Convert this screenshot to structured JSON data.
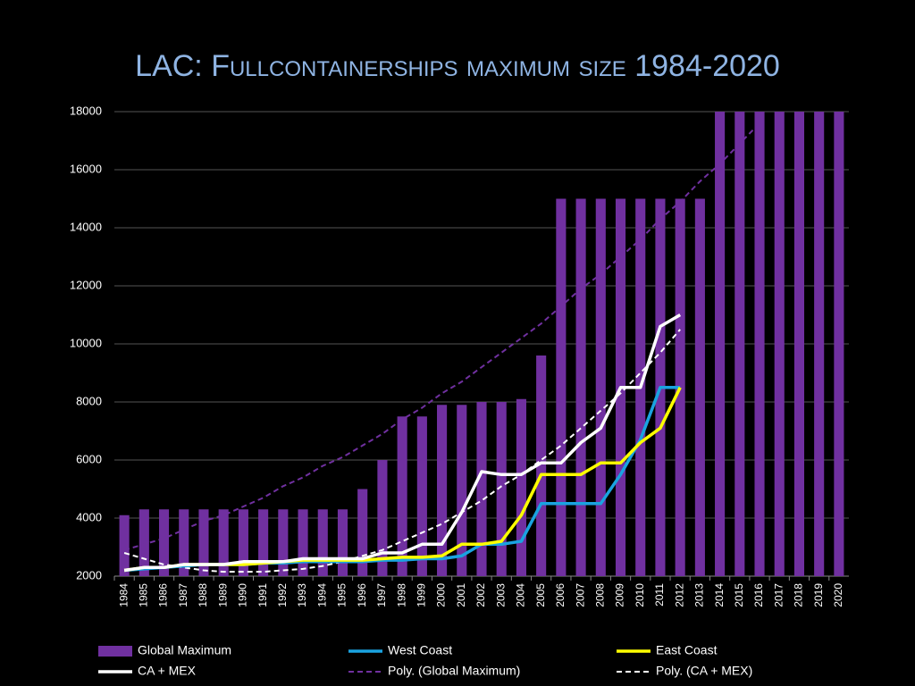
{
  "chart_data": {
    "type": "bar-line",
    "title": "LAC: Fullcontainerships maximum size 1984-2020",
    "categories": [
      "1984",
      "1985",
      "1986",
      "1987",
      "1988",
      "1989",
      "1990",
      "1991",
      "1992",
      "1993",
      "1994",
      "1995",
      "1996",
      "1997",
      "1998",
      "1999",
      "2000",
      "2001",
      "2002",
      "2003",
      "2004",
      "2005",
      "2006",
      "2007",
      "2008",
      "2009",
      "2010",
      "2011",
      "2012",
      "2013",
      "2014",
      "2015",
      "2016",
      "2017",
      "2018",
      "2019",
      "2020"
    ],
    "ylim": [
      2000,
      18000
    ],
    "yticks": [
      2000,
      4000,
      6000,
      8000,
      10000,
      12000,
      14000,
      16000,
      18000
    ],
    "grid": true,
    "legend": "bottom",
    "series": [
      {
        "name": "Global Maximum",
        "kind": "bar",
        "color": "#7030a0",
        "values": [
          4100,
          4300,
          4300,
          4300,
          4300,
          4300,
          4300,
          4300,
          4300,
          4300,
          4300,
          4300,
          5000,
          6000,
          7500,
          7500,
          7900,
          7900,
          8000,
          8000,
          8100,
          9600,
          15000,
          15000,
          15000,
          15000,
          15000,
          15000,
          15000,
          15000,
          18000,
          18000,
          18000,
          18000,
          18000,
          18000,
          18000
        ]
      },
      {
        "name": "West Coast",
        "kind": "line",
        "color": "#1aa3e0",
        "values": [
          2200,
          2250,
          2300,
          2350,
          2400,
          2400,
          2400,
          2450,
          2450,
          2500,
          2500,
          2500,
          2500,
          2550,
          2550,
          2600,
          2600,
          2700,
          3100,
          3100,
          3200,
          4500,
          4500,
          4500,
          4500,
          5500,
          6700,
          8500,
          8500,
          null,
          null,
          null,
          null,
          null,
          null,
          null,
          null
        ]
      },
      {
        "name": "East Coast",
        "kind": "line",
        "color": "#ffff00",
        "values": [
          2200,
          2300,
          2300,
          2400,
          2400,
          2400,
          2400,
          2450,
          2500,
          2550,
          2550,
          2550,
          2550,
          2600,
          2650,
          2650,
          2700,
          3100,
          3100,
          3200,
          4100,
          5500,
          5500,
          5500,
          5900,
          5900,
          6600,
          7100,
          8500,
          null,
          null,
          null,
          null,
          null,
          null,
          null,
          null
        ]
      },
      {
        "name": "CA + MEX",
        "kind": "line",
        "color": "#ffffff",
        "values": [
          2200,
          2300,
          2300,
          2400,
          2400,
          2400,
          2500,
          2500,
          2500,
          2600,
          2600,
          2600,
          2600,
          2800,
          2800,
          3100,
          3100,
          4200,
          5600,
          5500,
          5500,
          5900,
          5900,
          6600,
          7100,
          8500,
          8500,
          10600,
          11000,
          null,
          null,
          null,
          null,
          null,
          null,
          null,
          null
        ]
      },
      {
        "name": "Poly. (Global Maximum)",
        "kind": "dashed",
        "color": "#7030a0",
        "values": [
          2900,
          3100,
          3300,
          3600,
          3900,
          4100,
          4400,
          4700,
          5100,
          5400,
          5800,
          6100,
          6500,
          6900,
          7400,
          7800,
          8300,
          8700,
          9200,
          9700,
          10200,
          10700,
          11300,
          11900,
          12400,
          13000,
          13600,
          14300,
          14900,
          15600,
          16200,
          16900,
          17600,
          null,
          null,
          null,
          null
        ]
      },
      {
        "name": "Poly. (CA + MEX)",
        "kind": "dashed",
        "color": "#ffffff",
        "values": [
          2800,
          2600,
          2400,
          2300,
          2200,
          2150,
          2150,
          2150,
          2200,
          2250,
          2350,
          2500,
          2700,
          2900,
          3200,
          3500,
          3800,
          4200,
          4600,
          5100,
          5500,
          6000,
          6500,
          7100,
          7700,
          8300,
          9000,
          9700,
          10500,
          null,
          null,
          null,
          null,
          null,
          null,
          null,
          null
        ]
      }
    ]
  }
}
